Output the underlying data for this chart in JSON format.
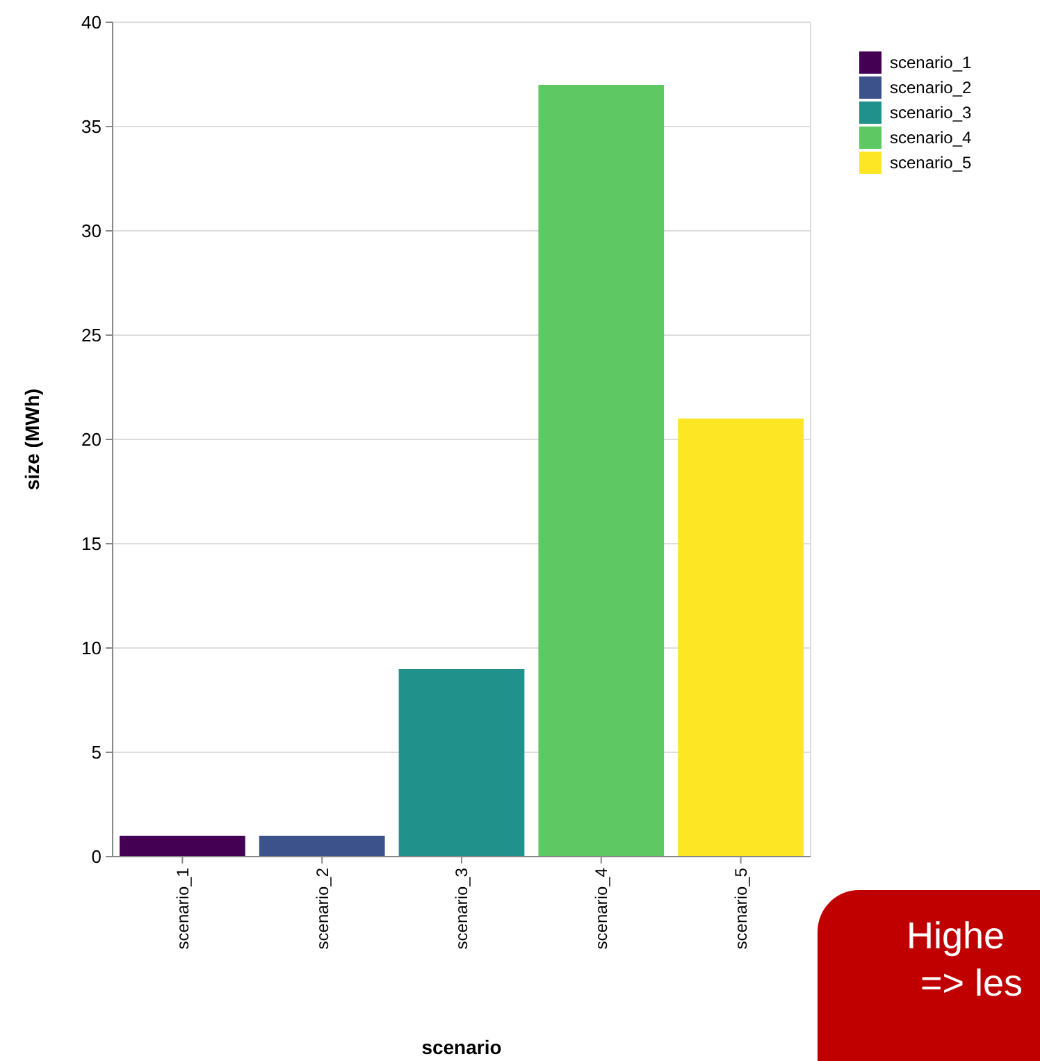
{
  "chart_data": {
    "type": "bar",
    "xlabel": "scenario",
    "ylabel": "size (MWh)",
    "categories": [
      "scenario_1",
      "scenario_2",
      "scenario_3",
      "scenario_4",
      "scenario_5"
    ],
    "series": [
      {
        "name": "scenario_1",
        "color": "#440154",
        "values": [
          1,
          null,
          null,
          null,
          null
        ]
      },
      {
        "name": "scenario_2",
        "color": "#3b528b",
        "values": [
          null,
          1,
          null,
          null,
          null
        ]
      },
      {
        "name": "scenario_3",
        "color": "#21918c",
        "values": [
          null,
          null,
          9,
          null,
          null
        ]
      },
      {
        "name": "scenario_4",
        "color": "#5ec962",
        "values": [
          null,
          null,
          null,
          37,
          null
        ]
      },
      {
        "name": "scenario_5",
        "color": "#fde725",
        "values": [
          null,
          null,
          null,
          null,
          21
        ]
      }
    ],
    "ylim": [
      0,
      40
    ],
    "yticks": [
      0,
      5,
      10,
      15,
      20,
      25,
      30,
      35,
      40
    ],
    "grid": "y",
    "legend": "top right",
    "annotations": [
      "Highe",
      "=> les"
    ]
  }
}
